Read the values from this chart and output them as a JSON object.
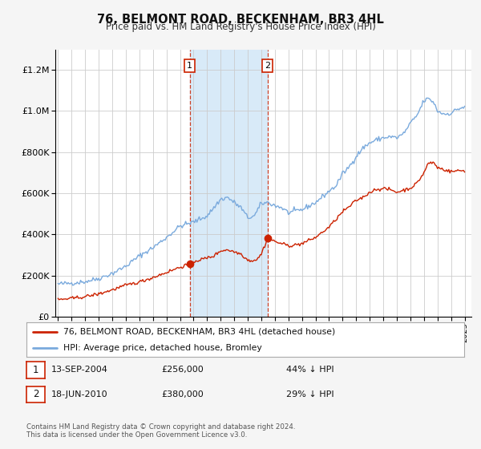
{
  "title": "76, BELMONT ROAD, BECKENHAM, BR3 4HL",
  "subtitle": "Price paid vs. HM Land Registry's House Price Index (HPI)",
  "bg_color": "#f5f5f5",
  "plot_bg_color": "#ffffff",
  "grid_color": "#cccccc",
  "hpi_color": "#7aaadd",
  "price_color": "#cc2200",
  "sale1_date": 2004.71,
  "sale1_price": 256000,
  "sale2_date": 2010.46,
  "sale2_price": 380000,
  "shade_color": "#d8eaf8",
  "legend_line1": "76, BELMONT ROAD, BECKENHAM, BR3 4HL (detached house)",
  "legend_line2": "HPI: Average price, detached house, Bromley",
  "footnote": "Contains HM Land Registry data © Crown copyright and database right 2024.\nThis data is licensed under the Open Government Licence v3.0.",
  "ylim_max": 1300000,
  "xmin": 1994.8,
  "xmax": 2025.5
}
